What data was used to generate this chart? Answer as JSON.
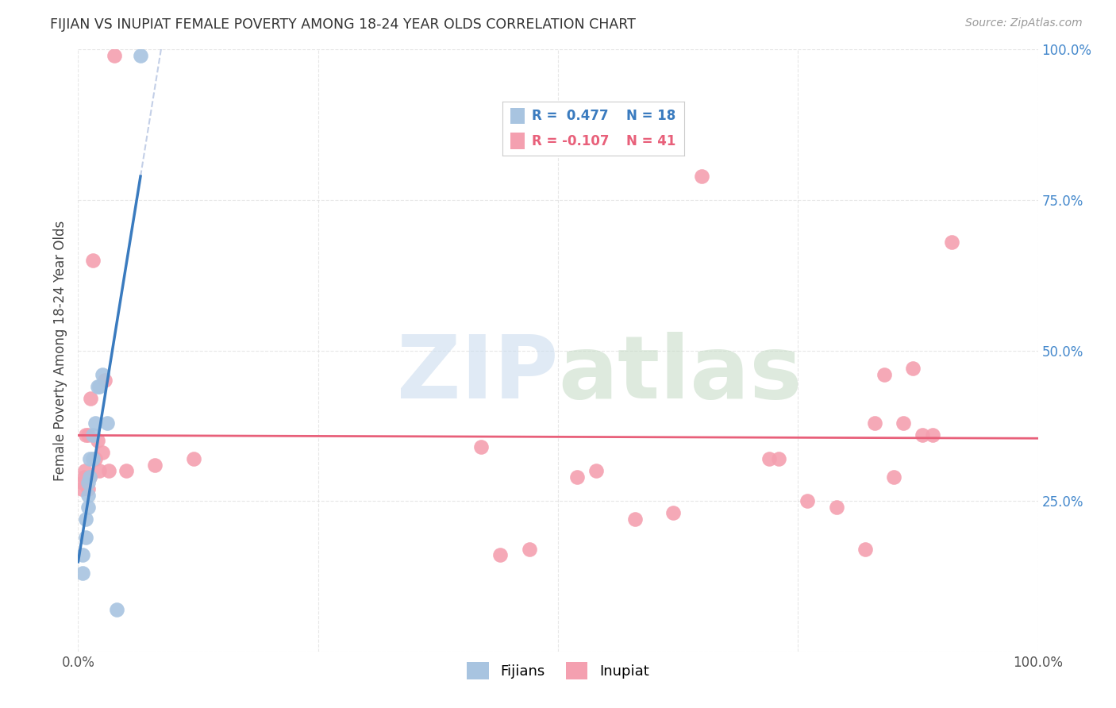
{
  "title": "FIJIAN VS INUPIAT FEMALE POVERTY AMONG 18-24 YEAR OLDS CORRELATION CHART",
  "source": "Source: ZipAtlas.com",
  "ylabel": "Female Poverty Among 18-24 Year Olds",
  "xlabel": "",
  "xlim": [
    0,
    1
  ],
  "ylim": [
    0,
    1
  ],
  "xticks": [
    0,
    0.25,
    0.5,
    0.75,
    1.0
  ],
  "yticks": [
    0,
    0.25,
    0.5,
    0.75,
    1.0
  ],
  "xticklabels": [
    "0.0%",
    "",
    "",
    "",
    "100.0%"
  ],
  "yticklabels": [
    "",
    "25.0%",
    "50.0%",
    "75.0%",
    "100.0%"
  ],
  "fijian_color": "#a8c4e0",
  "inupiat_color": "#f4a0b0",
  "fijian_line_color": "#3a7bbf",
  "inupiat_line_color": "#e8607a",
  "fijian_R": 0.477,
  "fijian_N": 18,
  "inupiat_R": -0.107,
  "inupiat_N": 41,
  "fijian_x": [
    0.005,
    0.005,
    0.008,
    0.008,
    0.01,
    0.01,
    0.01,
    0.012,
    0.012,
    0.015,
    0.015,
    0.018,
    0.02,
    0.022,
    0.025,
    0.03,
    0.04,
    0.065
  ],
  "fijian_y": [
    0.13,
    0.16,
    0.19,
    0.22,
    0.24,
    0.26,
    0.28,
    0.29,
    0.32,
    0.32,
    0.36,
    0.38,
    0.44,
    0.44,
    0.46,
    0.38,
    0.07,
    0.99
  ],
  "inupiat_x": [
    0.004,
    0.005,
    0.006,
    0.007,
    0.008,
    0.01,
    0.01,
    0.012,
    0.013,
    0.015,
    0.018,
    0.02,
    0.022,
    0.025,
    0.028,
    0.032,
    0.038,
    0.05,
    0.08,
    0.12,
    0.42,
    0.44,
    0.47,
    0.52,
    0.54,
    0.58,
    0.62,
    0.65,
    0.72,
    0.73,
    0.76,
    0.79,
    0.82,
    0.83,
    0.84,
    0.85,
    0.86,
    0.87,
    0.88,
    0.89,
    0.91
  ],
  "inupiat_y": [
    0.27,
    0.28,
    0.29,
    0.3,
    0.36,
    0.27,
    0.36,
    0.29,
    0.42,
    0.65,
    0.32,
    0.35,
    0.3,
    0.33,
    0.45,
    0.3,
    0.99,
    0.3,
    0.31,
    0.32,
    0.34,
    0.16,
    0.17,
    0.29,
    0.3,
    0.22,
    0.23,
    0.79,
    0.32,
    0.32,
    0.25,
    0.24,
    0.17,
    0.38,
    0.46,
    0.29,
    0.38,
    0.47,
    0.36,
    0.36,
    0.68
  ],
  "background_color": "#ffffff"
}
